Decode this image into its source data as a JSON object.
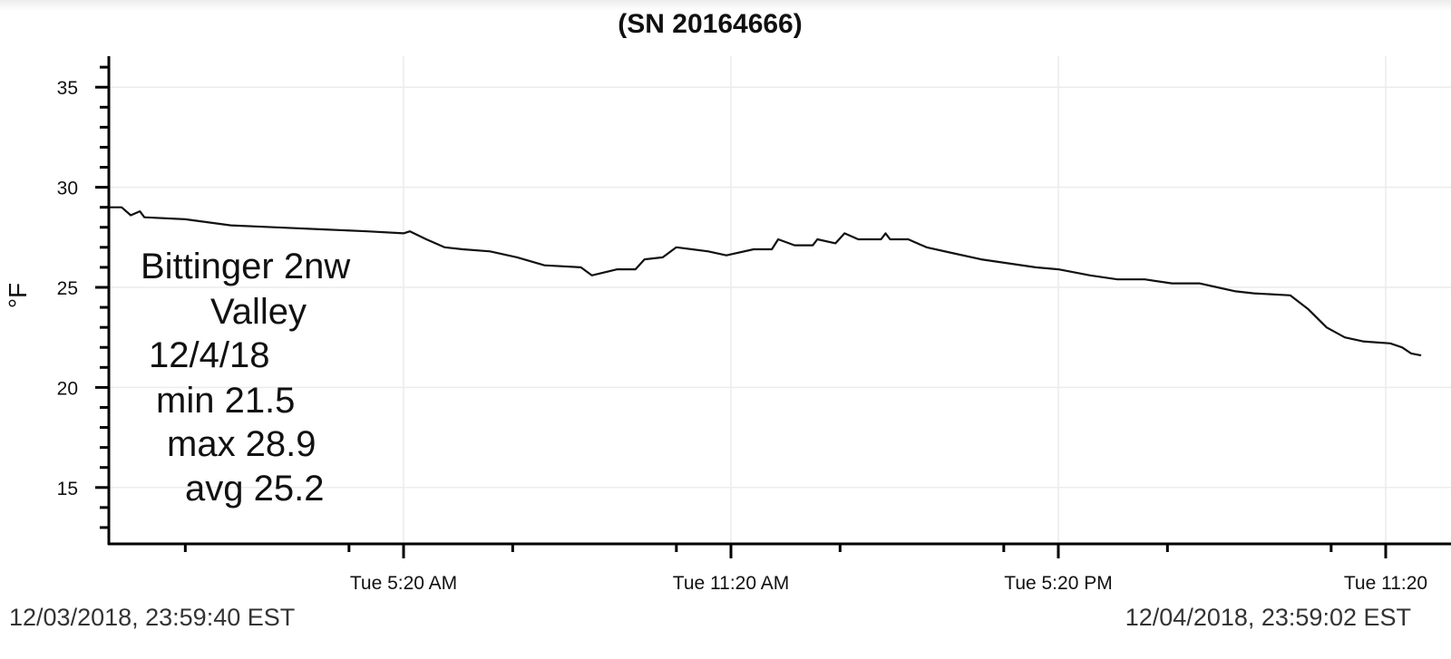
{
  "chart_data": {
    "type": "line",
    "title": "(SN 20164666)",
    "ylabel": "°F",
    "xlabel": "",
    "ylim": [
      12.2,
      36.4
    ],
    "yticks": [
      15,
      20,
      25,
      30,
      35
    ],
    "grid": true,
    "xticks": [
      {
        "time": "2018-12-04 05:20",
        "label": "Tue 5:20 AM"
      },
      {
        "time": "2018-12-04 11:20",
        "label": "Tue 11:20 AM"
      },
      {
        "time": "2018-12-04 17:20",
        "label": "Tue 5:20 PM"
      },
      {
        "time": "2018-12-04 23:20",
        "label": "Tue 11:20"
      }
    ],
    "xrange": [
      "2018-12-03 23:59:40",
      "2018-12-04 23:59:02"
    ],
    "annotation": [
      "Bittinger 2nw",
      "Valley",
      "12/4/18",
      "min 21.5",
      "max 28.9",
      "avg 25.2"
    ],
    "series": [
      {
        "color": "#111111",
        "points": [
          [
            "00:00",
            29.0
          ],
          [
            "00:10",
            29.0
          ],
          [
            "00:20",
            28.6
          ],
          [
            "00:30",
            28.8
          ],
          [
            "00:35",
            28.5
          ],
          [
            "01:20",
            28.4
          ],
          [
            "02:10",
            28.1
          ],
          [
            "03:00",
            28.0
          ],
          [
            "03:50",
            27.9
          ],
          [
            "04:40",
            27.8
          ],
          [
            "05:20",
            27.7
          ],
          [
            "05:27",
            27.8
          ],
          [
            "05:45",
            27.4
          ],
          [
            "06:05",
            27.0
          ],
          [
            "06:25",
            26.9
          ],
          [
            "06:55",
            26.8
          ],
          [
            "07:25",
            26.5
          ],
          [
            "07:55",
            26.1
          ],
          [
            "08:35",
            26.0
          ],
          [
            "08:47",
            25.6
          ],
          [
            "09:15",
            25.9
          ],
          [
            "09:35",
            25.9
          ],
          [
            "09:45",
            26.4
          ],
          [
            "10:05",
            26.5
          ],
          [
            "10:20",
            27.0
          ],
          [
            "10:55",
            26.8
          ],
          [
            "11:15",
            26.6
          ],
          [
            "11:45",
            26.9
          ],
          [
            "12:05",
            26.9
          ],
          [
            "12:12",
            27.4
          ],
          [
            "12:30",
            27.1
          ],
          [
            "12:50",
            27.1
          ],
          [
            "12:55",
            27.4
          ],
          [
            "13:15",
            27.2
          ],
          [
            "13:25",
            27.7
          ],
          [
            "13:40",
            27.4
          ],
          [
            "14:05",
            27.4
          ],
          [
            "14:10",
            27.7
          ],
          [
            "14:15",
            27.4
          ],
          [
            "14:35",
            27.4
          ],
          [
            "14:55",
            27.0
          ],
          [
            "15:25",
            26.7
          ],
          [
            "15:55",
            26.4
          ],
          [
            "16:25",
            26.2
          ],
          [
            "16:55",
            26.0
          ],
          [
            "17:20",
            25.9
          ],
          [
            "17:55",
            25.6
          ],
          [
            "18:25",
            25.4
          ],
          [
            "18:55",
            25.4
          ],
          [
            "19:25",
            25.2
          ],
          [
            "19:55",
            25.2
          ],
          [
            "20:15",
            25.0
          ],
          [
            "20:35",
            24.8
          ],
          [
            "20:55",
            24.7
          ],
          [
            "21:35",
            24.6
          ],
          [
            "21:55",
            23.9
          ],
          [
            "22:15",
            23.0
          ],
          [
            "22:35",
            22.5
          ],
          [
            "22:55",
            22.3
          ],
          [
            "23:25",
            22.2
          ],
          [
            "23:38",
            22.0
          ],
          [
            "23:48",
            21.7
          ],
          [
            "23:59",
            21.6
          ]
        ]
      }
    ]
  },
  "footer": {
    "start": "12/03/2018, 23:59:40 EST",
    "end": "12/04/2018, 23:59:02 EST"
  }
}
